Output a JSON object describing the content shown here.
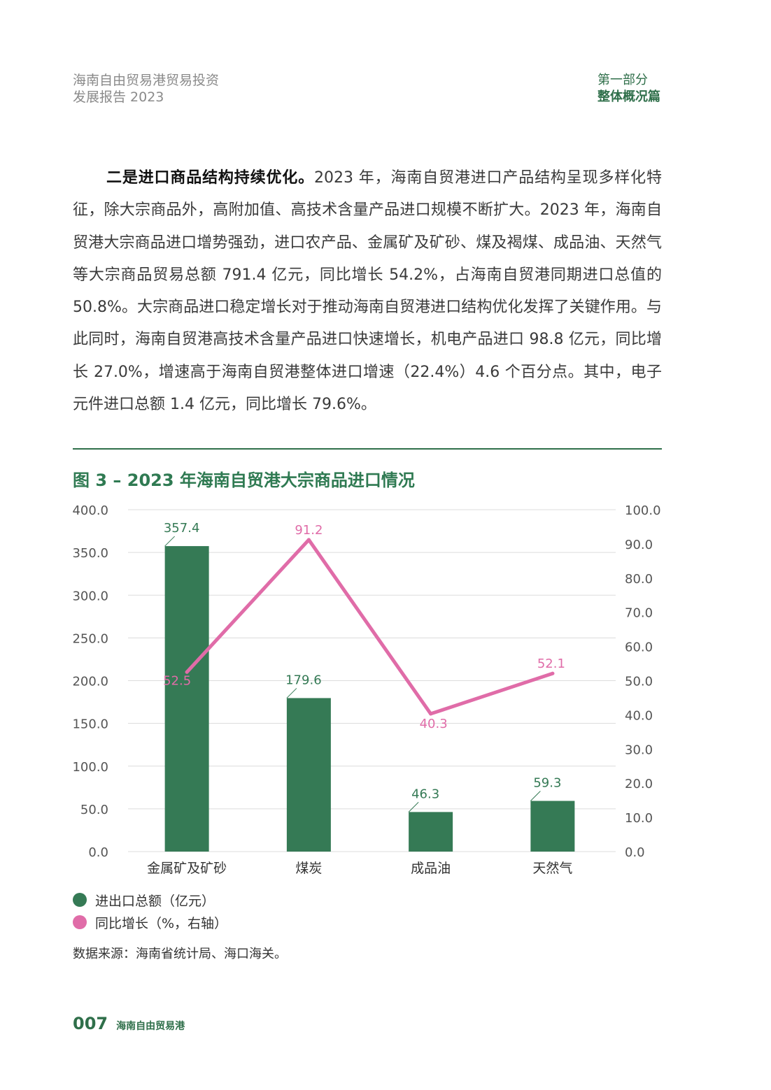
{
  "header": {
    "report_line1": "海南自由贸易港贸易投资",
    "report_line2": "发展报告 2023",
    "part_line1": "第一部分",
    "part_line2": "整体概况篇"
  },
  "body": {
    "lead_bold": "二是进口商品结构持续优化。",
    "text": "2023 年，海南自贸港进口产品结构呈现多样化特征，除大宗商品外，高附加值、高技术含量产品进口规模不断扩大。2023 年，海南自贸港大宗商品进口增势强劲，进口农产品、金属矿及矿砂、煤及褐煤、成品油、天然气等大宗商品贸易总额 791.4 亿元，同比增长 54.2%，占海南自贸港同期进口总值的 50.8%。大宗商品进口稳定增长对于推动海南自贸港进口结构优化发挥了关键作用。与此同时，海南自贸港高技术含量产品进口快速增长，机电产品进口 98.8 亿元，同比增长 27.0%，增速高于海南自贸港整体进口增速（22.4%）4.6 个百分点。其中，电子元件进口总额 1.4 亿元，同比增长 79.6%。"
  },
  "figure": {
    "title": "图 3 – 2023 年海南自贸港大宗商品进口情况",
    "source": "数据来源：海南省统计局、海口海关。"
  },
  "chart_data": {
    "type": "bar",
    "title": "图 3 – 2023 年海南自贸港大宗商品进口情况",
    "categories": [
      "金属矿及矿砂",
      "煤炭",
      "成品油",
      "天然气"
    ],
    "series": [
      {
        "name": "进出口总额（亿元）",
        "type": "bar",
        "axis": "left",
        "values": [
          357.4,
          179.6,
          46.3,
          59.3
        ],
        "color": "#357a55"
      },
      {
        "name": "同比增长（%，右轴）",
        "type": "line",
        "axis": "right",
        "values": [
          52.5,
          91.2,
          40.3,
          52.1
        ],
        "color": "#e06ca8"
      }
    ],
    "y_left": {
      "min": 0,
      "max": 400,
      "ticks": [
        "0.0",
        "50.0",
        "100.0",
        "150.0",
        "200.0",
        "250.0",
        "300.0",
        "350.0",
        "400.0"
      ]
    },
    "y_right": {
      "min": 0,
      "max": 100,
      "ticks": [
        "0.0",
        "10.0",
        "20.0",
        "30.0",
        "40.0",
        "50.0",
        "60.0",
        "70.0",
        "80.0",
        "90.0",
        "100.0"
      ]
    },
    "grid": true,
    "legend_position": "bottom-left"
  },
  "footer": {
    "page": "007",
    "name": "海南自由贸易港"
  }
}
